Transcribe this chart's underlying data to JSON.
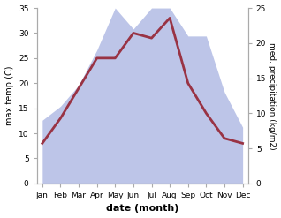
{
  "months": [
    "Jan",
    "Feb",
    "Mar",
    "Apr",
    "May",
    "Jun",
    "Jul",
    "Aug",
    "Sep",
    "Oct",
    "Nov",
    "Dec"
  ],
  "max_temp": [
    8,
    13,
    19,
    25,
    25,
    30,
    29,
    33,
    20,
    14,
    9,
    8
  ],
  "precipitation": [
    9,
    11,
    14,
    19,
    25,
    22,
    25,
    25,
    21,
    21,
    13,
    8
  ],
  "temp_color": "#993344",
  "precip_fill_color": "#bdc5e8",
  "xlabel": "date (month)",
  "ylabel_left": "max temp (C)",
  "ylabel_right": "med. precipitation (kg/m2)",
  "ylim_left": [
    0,
    35
  ],
  "ylim_right": [
    0,
    25
  ],
  "yticks_left": [
    0,
    5,
    10,
    15,
    20,
    25,
    30,
    35
  ],
  "yticks_right": [
    0,
    5,
    10,
    15,
    20,
    25
  ],
  "background_color": "#ffffff",
  "spine_color": "#aaaaaa",
  "line_width": 2.0
}
